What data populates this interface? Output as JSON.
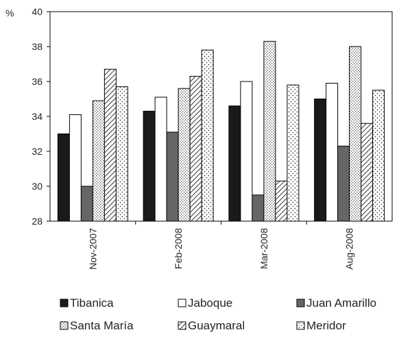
{
  "chart_data": {
    "type": "bar",
    "ylabel": "%",
    "ylim": [
      28,
      40
    ],
    "yticks": [
      "28",
      "30",
      "32",
      "34",
      "36",
      "38",
      "40"
    ],
    "grid": false,
    "legend_position": "bottom",
    "categories": [
      "Nov-2007",
      "Feb-2008",
      "Mar-2008",
      "Aug-2008"
    ],
    "series": [
      {
        "name": "Tibanica",
        "values": [
          33.0,
          34.3,
          34.6,
          35.0
        ],
        "fill": "#1a1a1a",
        "pattern": "solid"
      },
      {
        "name": "Jaboque",
        "values": [
          34.1,
          35.1,
          36.0,
          35.9
        ],
        "fill": "#ffffff",
        "pattern": "solid"
      },
      {
        "name": "Juan Amarillo",
        "values": [
          30.0,
          33.1,
          29.5,
          32.3
        ],
        "fill": "#666666",
        "pattern": "solid"
      },
      {
        "name": "Santa María",
        "values": [
          34.9,
          35.6,
          38.3,
          38.0
        ],
        "fill": "#ffffff",
        "pattern": "dots-fine"
      },
      {
        "name": "Guaymaral",
        "values": [
          36.7,
          36.3,
          30.3,
          33.6
        ],
        "fill": "#ffffff",
        "pattern": "diagonal"
      },
      {
        "name": "Meridor",
        "values": [
          35.7,
          37.8,
          35.8,
          35.5
        ],
        "fill": "#ffffff",
        "pattern": "dots-coarse"
      }
    ]
  }
}
